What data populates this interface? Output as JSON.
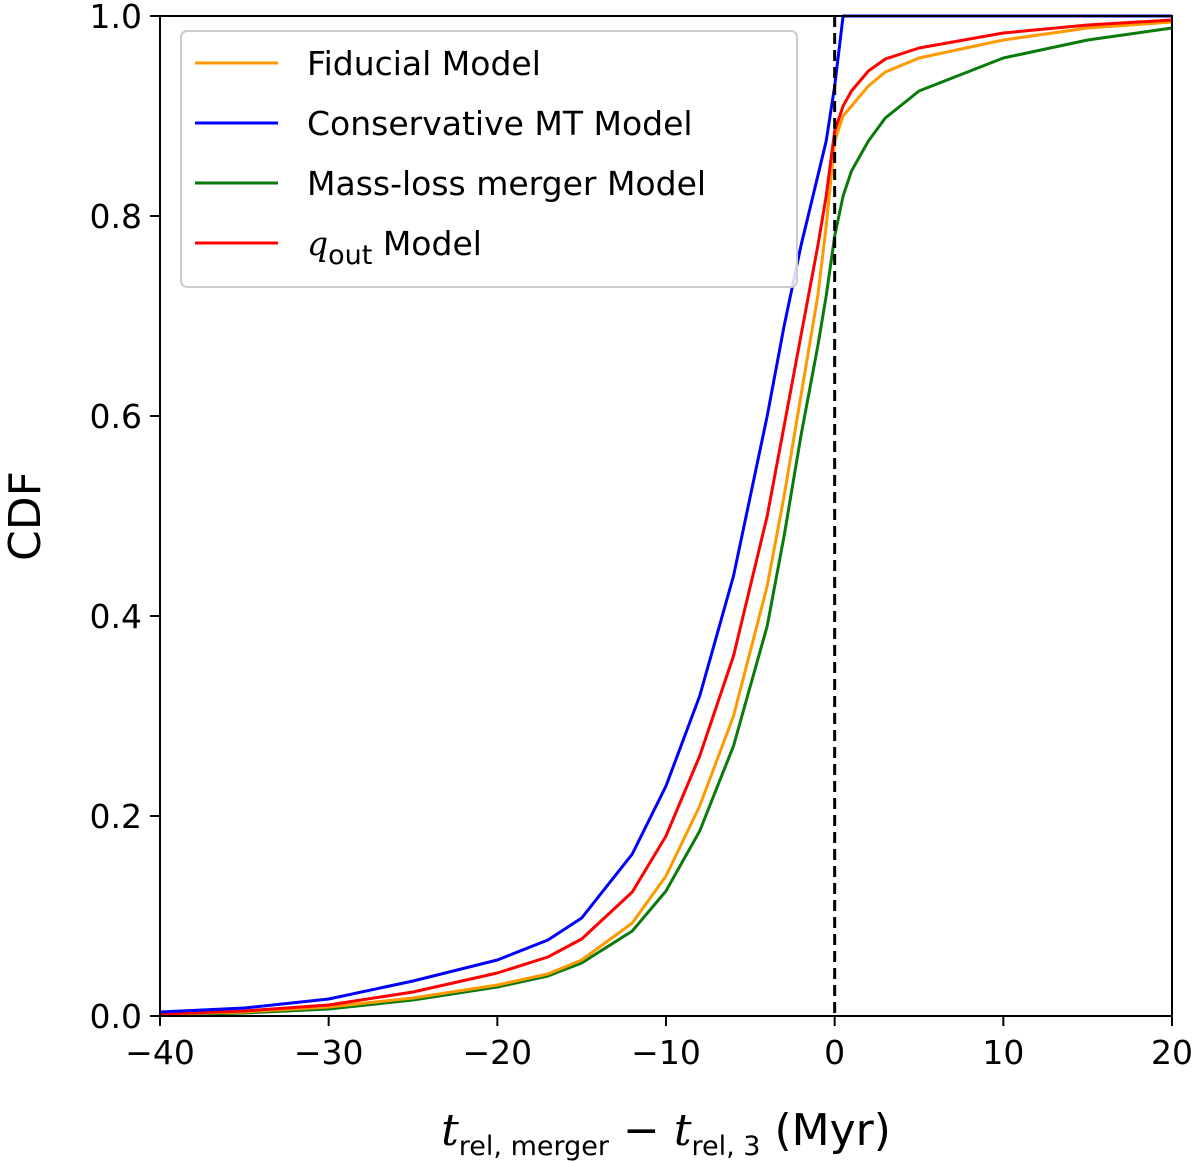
{
  "chart_data": {
    "type": "line",
    "title": "",
    "xlabel": {
      "t1": "t",
      "sub1": "rel, merger",
      "minus": " − ",
      "t2": "t",
      "sub2": "rel, 3",
      "unit": " (Myr)"
    },
    "ylabel": "CDF",
    "xlim": [
      -40,
      20
    ],
    "ylim": [
      0,
      1
    ],
    "xticks": [
      -40,
      -30,
      -20,
      -10,
      0,
      10,
      20
    ],
    "xtick_labels": [
      "−40",
      "−30",
      "−20",
      "−10",
      "0",
      "10",
      "20"
    ],
    "yticks": [
      0,
      0.2,
      0.4,
      0.6,
      0.8,
      1.0
    ],
    "ytick_labels": [
      "0.0",
      "0.2",
      "0.4",
      "0.6",
      "0.8",
      "1.0"
    ],
    "legend_position": "top-left",
    "vline": {
      "x": 0,
      "style": "dashed",
      "color": "#000000"
    },
    "series": [
      {
        "name": "Fiducial Model",
        "color": "#ff9900",
        "x": [
          -40,
          -35,
          -30,
          -25,
          -20,
          -17,
          -15,
          -12,
          -10,
          -8,
          -6,
          -4,
          -3,
          -2,
          -1,
          -0.5,
          0,
          0.5,
          1,
          2,
          3,
          5,
          10,
          15,
          20
        ],
        "y": [
          0.002,
          0.004,
          0.009,
          0.018,
          0.031,
          0.042,
          0.056,
          0.093,
          0.14,
          0.21,
          0.3,
          0.43,
          0.52,
          0.62,
          0.72,
          0.79,
          0.875,
          0.9,
          0.91,
          0.93,
          0.944,
          0.958,
          0.976,
          0.988,
          0.994
        ]
      },
      {
        "name": "Conservative MT Model",
        "color": "#0000ff",
        "x": [
          -40,
          -35,
          -30,
          -25,
          -20,
          -17,
          -15,
          -12,
          -10,
          -8,
          -6,
          -4,
          -3,
          -2,
          -1,
          -0.5,
          0,
          0.5,
          20
        ],
        "y": [
          0.004,
          0.008,
          0.017,
          0.035,
          0.056,
          0.076,
          0.098,
          0.162,
          0.23,
          0.32,
          0.44,
          0.6,
          0.69,
          0.77,
          0.84,
          0.875,
          0.93,
          1.0,
          1.0
        ]
      },
      {
        "name": "Mass-loss merger Model",
        "color": "#0a7a0a",
        "x": [
          -40,
          -35,
          -30,
          -25,
          -20,
          -17,
          -15,
          -12,
          -10,
          -8,
          -6,
          -4,
          -3,
          -2,
          -1,
          -0.5,
          0,
          0.5,
          1,
          2,
          3,
          5,
          10,
          15,
          20
        ],
        "y": [
          0.001,
          0.003,
          0.007,
          0.016,
          0.029,
          0.04,
          0.053,
          0.085,
          0.125,
          0.185,
          0.27,
          0.39,
          0.48,
          0.58,
          0.67,
          0.72,
          0.78,
          0.82,
          0.845,
          0.875,
          0.898,
          0.925,
          0.958,
          0.976,
          0.988
        ]
      },
      {
        "name": "q_out Model",
        "label_main": "q",
        "label_sub": "out",
        "label_rest": " Model",
        "color": "#ff0000",
        "x": [
          -40,
          -35,
          -30,
          -25,
          -20,
          -17,
          -15,
          -12,
          -10,
          -8,
          -6,
          -4,
          -3,
          -2,
          -1,
          -0.5,
          0,
          0.5,
          1,
          2,
          3,
          5,
          10,
          15,
          20
        ],
        "y": [
          0.002,
          0.005,
          0.011,
          0.024,
          0.043,
          0.059,
          0.077,
          0.124,
          0.18,
          0.26,
          0.36,
          0.5,
          0.59,
          0.68,
          0.77,
          0.82,
          0.885,
          0.91,
          0.925,
          0.945,
          0.957,
          0.968,
          0.983,
          0.991,
          0.996
        ]
      }
    ]
  }
}
